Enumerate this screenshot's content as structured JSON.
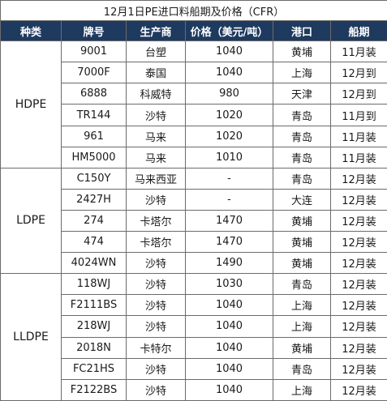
{
  "title": "12月1日PE进口料船期及价格（CFR）",
  "headers": [
    "种类",
    "牌号",
    "生产商",
    "价格（美元/吨）",
    "港口",
    "船期"
  ],
  "groups": [
    {
      "category": "HDPE",
      "rows": [
        {
          "grade": "9001",
          "producer": "台塑",
          "price": "1040",
          "port": "黄埔",
          "schedule": "11月装"
        },
        {
          "grade": "7000F",
          "producer": "泰国",
          "price": "1040",
          "port": "上海",
          "schedule": "12月到"
        },
        {
          "grade": "6888",
          "producer": "科威特",
          "price": "980",
          "port": "天津",
          "schedule": "12月到"
        },
        {
          "grade": "TR144",
          "producer": "沙特",
          "price": "1020",
          "port": "青岛",
          "schedule": "11月到"
        },
        {
          "grade": "961",
          "producer": "马来",
          "price": "1020",
          "port": "青岛",
          "schedule": "11月装"
        },
        {
          "grade": "HM5000",
          "producer": "马来",
          "price": "1010",
          "port": "青岛",
          "schedule": "11月装"
        }
      ]
    },
    {
      "category": "LDPE",
      "rows": [
        {
          "grade": "C150Y",
          "producer": "马来西亚",
          "price": "-",
          "port": "青岛",
          "schedule": "12月装"
        },
        {
          "grade": "2427H",
          "producer": "沙特",
          "price": "-",
          "port": "大连",
          "schedule": "12月装"
        },
        {
          "grade": "274",
          "producer": "卡塔尔",
          "price": "1470",
          "port": "黄埔",
          "schedule": "12月装"
        },
        {
          "grade": "474",
          "producer": "卡塔尔",
          "price": "1470",
          "port": "黄埔",
          "schedule": "12月装"
        },
        {
          "grade": "4024WN",
          "producer": "沙特",
          "price": "1490",
          "port": "黄埔",
          "schedule": "12月装"
        }
      ]
    },
    {
      "category": "LLDPE",
      "rows": [
        {
          "grade": "118WJ",
          "producer": "沙特",
          "price": "1030",
          "port": "青岛",
          "schedule": "12月装"
        },
        {
          "grade": "F2111BS",
          "producer": "沙特",
          "price": "1040",
          "port": "上海",
          "schedule": "12月装"
        },
        {
          "grade": "218WJ",
          "producer": "沙特",
          "price": "1040",
          "port": "上海",
          "schedule": "12月装"
        },
        {
          "grade": "2018N",
          "producer": "卡特尔",
          "price": "1040",
          "port": "黄埔",
          "schedule": "12月装"
        },
        {
          "grade": "FC21HS",
          "producer": "沙特",
          "price": "1040",
          "port": "青岛",
          "schedule": "12月装"
        },
        {
          "grade": "F2122BS",
          "producer": "沙特",
          "price": "1040",
          "port": "上海",
          "schedule": "12月装"
        }
      ]
    }
  ]
}
